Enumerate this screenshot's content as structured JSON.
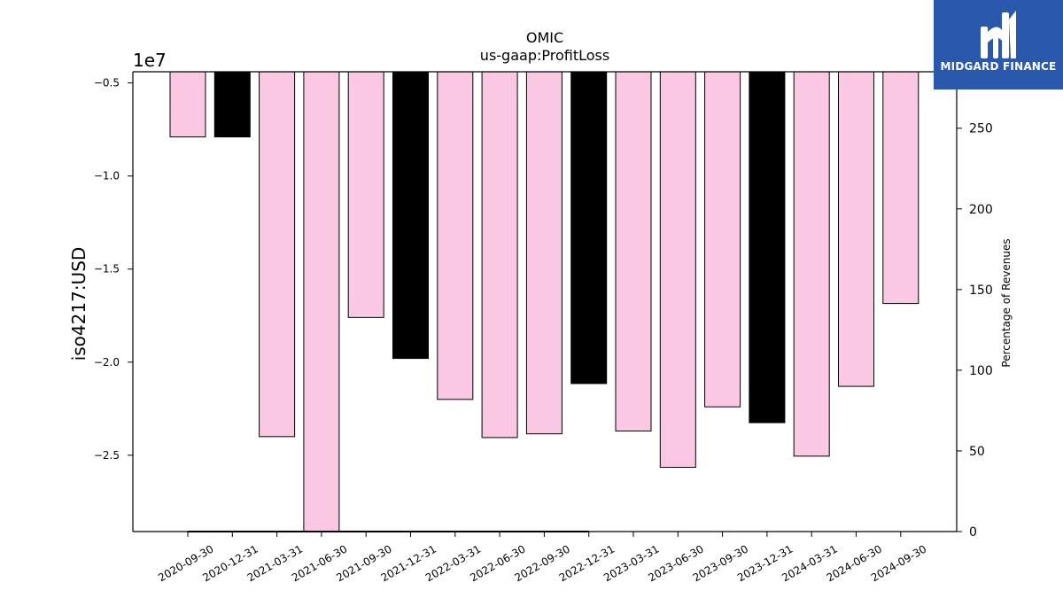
{
  "brand": {
    "name": "MIDGARD FINANCE",
    "colors": {
      "background": "#2a58ac",
      "foreground": "#ffffff"
    }
  },
  "chart_data": {
    "type": "bar",
    "title": "OMIC",
    "subtitle": "us-gaap:ProfitLoss",
    "ylabel": "iso4217:USD",
    "y_offset_label": "1e7",
    "y2label": "Percentage of Revenues",
    "categories": [
      "2020-09-30",
      "2020-12-31",
      "2021-03-31",
      "2021-06-30",
      "2021-09-30",
      "2021-12-31",
      "2022-03-31",
      "2022-06-30",
      "2022-09-30",
      "2022-12-31",
      "2023-03-31",
      "2023-06-30",
      "2023-09-30",
      "2023-12-31",
      "2024-03-31",
      "2024-06-30",
      "2024-09-30"
    ],
    "values": [
      -7900000,
      -7900000,
      -24000000,
      -29100000,
      -17600000,
      -19800000,
      -22000000,
      -24050000,
      -23850000,
      -21150000,
      -23700000,
      -25650000,
      -22400000,
      -23250000,
      -25050000,
      -21300000,
      -16850000
    ],
    "bar_colors": [
      "#fbc8e4",
      "#000000",
      "#fbc8e4",
      "#fbc8e4",
      "#fbc8e4",
      "#000000",
      "#fbc8e4",
      "#fbc8e4",
      "#fbc8e4",
      "#000000",
      "#fbc8e4",
      "#fbc8e4",
      "#fbc8e4",
      "#000000",
      "#fbc8e4",
      "#fbc8e4",
      "#fbc8e4"
    ],
    "ylim": [
      -29100000,
      -4400000
    ],
    "yticks": [
      -5000000,
      -10000000,
      -15000000,
      -20000000,
      -25000000
    ],
    "ytick_labels": [
      "−0.5",
      "−1.0",
      "−1.5",
      "−2.0",
      "−2.5"
    ],
    "y2lim": [
      0,
      285
    ],
    "y2ticks": [
      0,
      50,
      100,
      150,
      200,
      250
    ],
    "y2tick_labels": [
      "0",
      "50",
      "100",
      "150",
      "200",
      "250"
    ],
    "line_series": {
      "axis": "y2",
      "x_from": "2020-09-30",
      "x_to": "2022-12-31",
      "values": [
        0,
        0
      ],
      "color": "#000000"
    },
    "grid": false,
    "legend": "none"
  }
}
